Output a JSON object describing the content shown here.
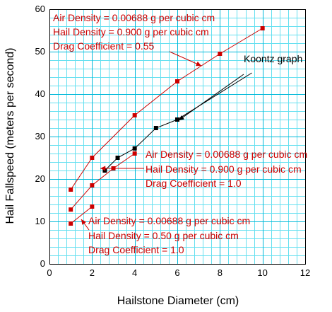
{
  "chart_data": {
    "type": "line",
    "xlabel": "Hailstone Diameter (cm)",
    "ylabel": "Hail Fallspeed (meters per second)",
    "xlim": [
      0,
      12
    ],
    "ylim": [
      0,
      60
    ],
    "xticks": [
      0,
      2,
      4,
      6,
      8,
      10,
      12
    ],
    "yticks": [
      0,
      10,
      20,
      30,
      40,
      50,
      60
    ],
    "grid": true,
    "grid_minor_step": [
      0.4,
      2
    ],
    "colors": {
      "grid_minor": "#66e0f0",
      "grid_major": "#00b8d8",
      "red": "#cc0000",
      "black": "#000000"
    },
    "series": [
      {
        "key": "a",
        "color": "#cc0000",
        "x": [
          1,
          2,
          4,
          6,
          8,
          10
        ],
        "y": [
          17.5,
          25,
          35,
          43,
          49.5,
          55.5
        ]
      },
      {
        "key": "b",
        "color": "#cc0000",
        "x": [
          1,
          2,
          3,
          4
        ],
        "y": [
          12.8,
          18.5,
          22.5,
          26
        ]
      },
      {
        "key": "c",
        "color": "#cc0000",
        "x": [
          1,
          2
        ],
        "y": [
          9.5,
          13.5
        ]
      },
      {
        "key": "koontz",
        "name": "Koontz graph",
        "color": "#000000",
        "x": [
          2.6,
          3.2,
          4,
          5,
          6
        ],
        "y": [
          22,
          25,
          27.2,
          32,
          34
        ],
        "line_to": [
          9.5,
          45
        ]
      }
    ],
    "annotations": [
      {
        "key": "a",
        "lines": [
          "Air Density    = 0.00688 g per cubic cm",
          "Hail Density = 0.900    g per cubic cm",
          "Drag Coefficient = 0.55"
        ]
      },
      {
        "key": "b",
        "lines": [
          "Air Density = 0.00688 g per cubic cm",
          "Hail Density = 0.900   g per cubic cm",
          "Drag Coefficient = 1.0"
        ]
      },
      {
        "key": "c",
        "lines": [
          "Air Density = 0.00688 g per cubic cm",
          "Hail Density = 0.50 g per cubic cm",
          "Drag Coefficient = 1.0"
        ]
      }
    ]
  }
}
